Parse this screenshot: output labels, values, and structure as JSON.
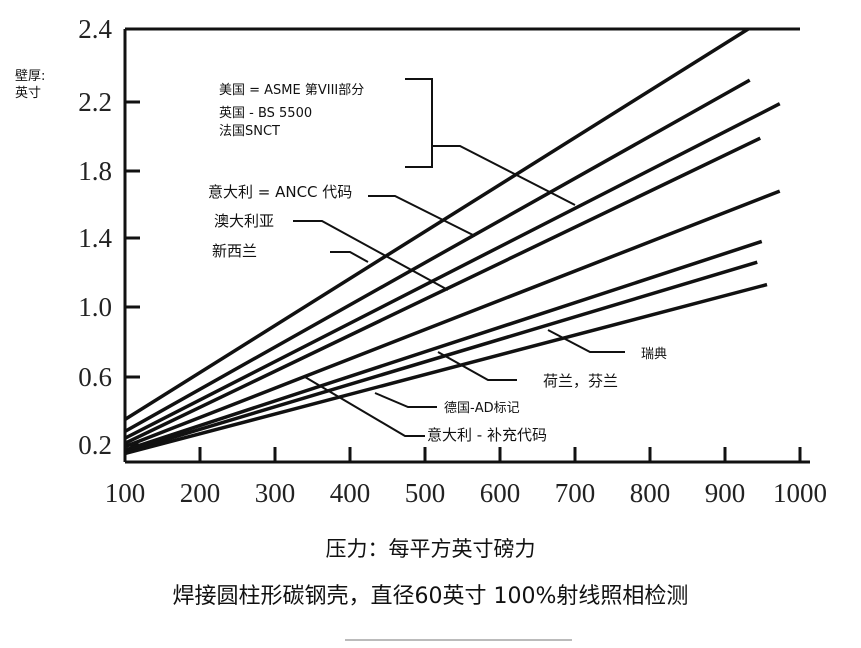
{
  "chart_data": {
    "type": "line",
    "title": "",
    "ylabel": "壁厚：英寸",
    "ylabel_lines": [
      "壁厚:",
      "英寸"
    ],
    "xlabel": "压力：每平方英寸磅力",
    "caption": "焊接圆柱形碳钢壳，直径60英寸 100%射线照相检测",
    "xlim": [
      100,
      1000
    ],
    "ylim": [
      0.2,
      2.4
    ],
    "x_ticks": [
      100,
      200,
      300,
      400,
      500,
      600,
      700,
      800,
      900,
      1000
    ],
    "y_ticks": [
      "2.4",
      "2.2",
      "1.8",
      "1.4",
      "1.0",
      "0.6",
      "0.2"
    ],
    "series": [
      {
        "name": "美国/英国/法国 线1",
        "x": [
          100,
          931
        ],
        "y": [
          0.35,
          2.4
        ]
      },
      {
        "name": "美国/英国/法国 线2",
        "x": [
          100,
          933
        ],
        "y": [
          0.28,
          2.26
        ]
      },
      {
        "name": "意大利 ANCC",
        "x": [
          100,
          973
        ],
        "y": [
          0.24,
          2.19
        ]
      },
      {
        "name": "澳大利亚",
        "x": [
          100,
          947
        ],
        "y": [
          0.21,
          1.99
        ]
      },
      {
        "name": "新西兰",
        "x": [
          100,
          973
        ],
        "y": [
          0.19,
          1.68
        ]
      },
      {
        "name": "瑞典",
        "x": [
          100,
          949
        ],
        "y": [
          0.17,
          1.38
        ]
      },
      {
        "name": "荷兰，芬兰",
        "x": [
          100,
          943
        ],
        "y": [
          0.16,
          1.26
        ]
      },
      {
        "name": "德国/意大利补充",
        "x": [
          100,
          956
        ],
        "y": [
          0.15,
          1.13
        ]
      }
    ],
    "annotations": {
      "usa": "美国 = ASME 第VIII部分",
      "uk": "英国 - BS 5500",
      "france": "法国SNCT",
      "italy_ancc": "意大利 = ANCC 代码",
      "australia": "澳大利亚",
      "new_zealand": "新西兰",
      "sweden": "瑞典",
      "netherlands_finland": "荷兰，芬兰",
      "germany": "德国-AD标记",
      "italy_supp": "意大利 - 补充代码"
    }
  }
}
